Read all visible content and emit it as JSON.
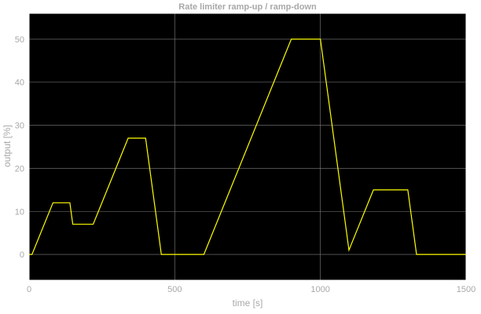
{
  "chart_data": {
    "type": "line",
    "title": "Rate limiter ramp-up / ramp-down",
    "xlabel": "time [s]",
    "ylabel": "output [%]",
    "xlim": [
      0,
      1500
    ],
    "ylim": [
      -6,
      56
    ],
    "xticks": [
      0,
      500,
      1000,
      1500
    ],
    "yticks": [
      0,
      10,
      20,
      30,
      40,
      50
    ],
    "grid": true,
    "colors": {
      "background": "#000000",
      "line": "#ffff00",
      "grid": "#808080",
      "text": "#a8a8a8"
    },
    "series": [
      {
        "x": [
          0,
          10,
          82,
          140,
          150,
          220,
          340,
          400,
          454,
          600,
          900,
          1000,
          1098,
          1182,
          1300,
          1330,
          1500
        ],
        "y": [
          0,
          0,
          12,
          12,
          7,
          7,
          27,
          27,
          0,
          0,
          50,
          50,
          1,
          15,
          15,
          0,
          0
        ]
      }
    ]
  }
}
